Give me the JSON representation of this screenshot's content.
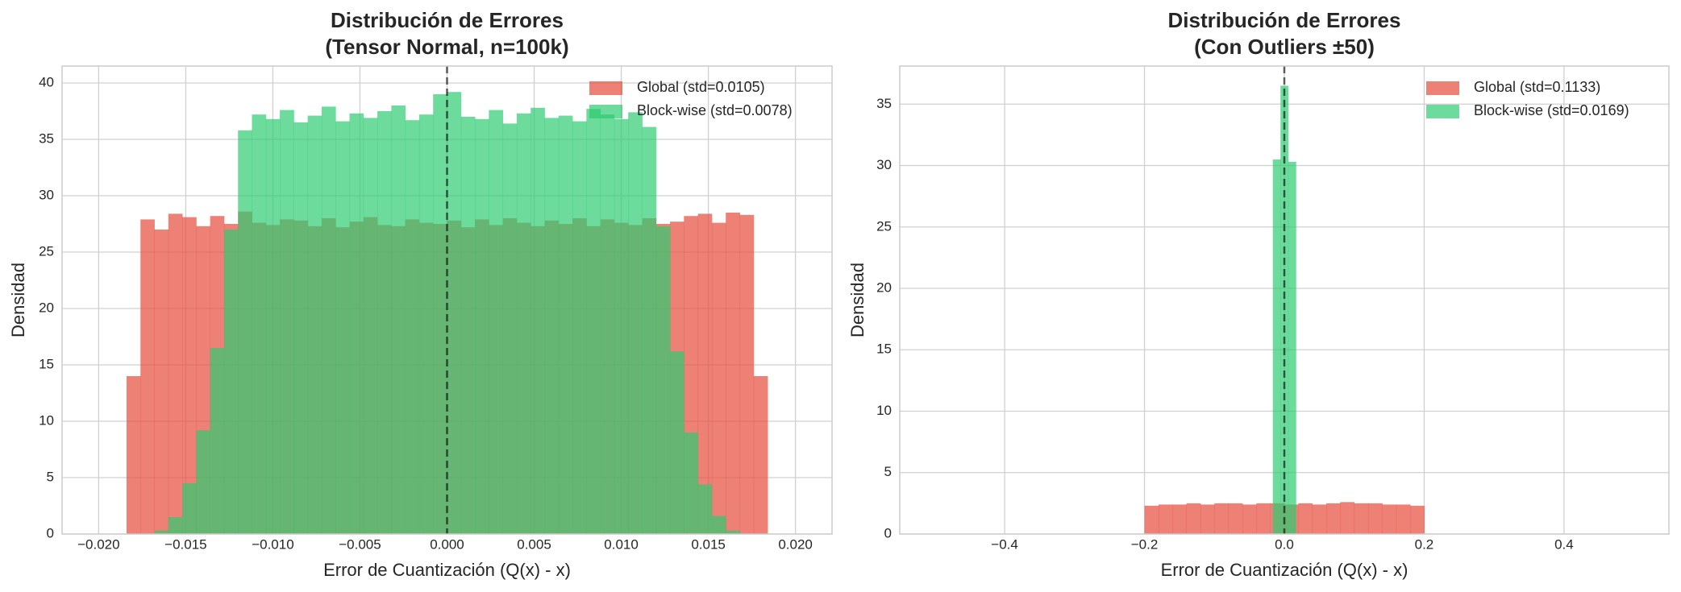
{
  "chart_data": [
    {
      "type": "histogram",
      "title": [
        "Distribución de Errores",
        "(Tensor Normal, n=100k)"
      ],
      "xlabel": "Error de Cuantización (Q(x) - x)",
      "ylabel": "Densidad",
      "xlim": [
        -0.0221,
        0.0221
      ],
      "ylim": [
        0,
        41.5
      ],
      "xticks": [
        {
          "value": -0.02,
          "label": "−0.020"
        },
        {
          "value": -0.015,
          "label": "−0.015"
        },
        {
          "value": -0.01,
          "label": "−0.010"
        },
        {
          "value": -0.005,
          "label": "−0.005"
        },
        {
          "value": 0,
          "label": "0.000"
        },
        0.005,
        {
          "value": 0.01,
          "label": "0.010"
        },
        0.015,
        {
          "value": 0.02,
          "label": "0.020"
        }
      ],
      "yticks": [
        0,
        5,
        10,
        15,
        20,
        25,
        30,
        35,
        40
      ],
      "grid": true,
      "legend": "upper right",
      "vline": 0,
      "alpha": 0.7,
      "series": [
        {
          "name": "Global (std=0.0105)",
          "color": "#e74c3c",
          "bins": [
            -0.0184,
            -0.0176,
            -0.0168,
            -0.016,
            -0.0152,
            -0.0144,
            -0.0136,
            -0.0128,
            -0.012,
            -0.0112,
            -0.0104,
            -0.0096,
            -0.0088,
            -0.008,
            -0.0072,
            -0.0064,
            -0.0056,
            -0.0048,
            -0.004,
            -0.0032,
            -0.0024,
            -0.0016,
            -0.0008,
            0,
            0.0008,
            0.0016,
            0.0024,
            0.0032,
            0.004,
            0.0048,
            0.0056,
            0.0064,
            0.0072,
            0.008,
            0.0088,
            0.0096,
            0.0104,
            0.0112,
            0.012,
            0.0128,
            0.0136,
            0.0144,
            0.0152,
            0.016,
            0.0168,
            0.0176,
            0.0184
          ],
          "values": [
            14.0,
            27.9,
            27.0,
            28.4,
            28.1,
            27.3,
            28.2,
            27.5,
            28.6,
            27.6,
            27.4,
            27.9,
            27.8,
            27.3,
            28.0,
            27.2,
            27.7,
            28.1,
            27.4,
            27.3,
            27.9,
            27.6,
            27.5,
            27.8,
            27.2,
            27.9,
            27.4,
            28.0,
            27.6,
            27.3,
            27.8,
            27.5,
            28.0,
            27.3,
            27.9,
            27.6,
            27.4,
            28.0,
            27.5,
            27.7,
            28.2,
            28.4,
            27.6,
            28.5,
            28.3,
            14.0
          ]
        },
        {
          "name": "Block-wise (std=0.0078)",
          "color": "#2ecc71",
          "bins": [
            -0.0168,
            -0.016,
            -0.0152,
            -0.0144,
            -0.0136,
            -0.0128,
            -0.012,
            -0.0112,
            -0.0104,
            -0.0096,
            -0.0088,
            -0.008,
            -0.0072,
            -0.0064,
            -0.0056,
            -0.0048,
            -0.004,
            -0.0032,
            -0.0024,
            -0.0016,
            -0.0008,
            0,
            0.0008,
            0.0016,
            0.0024,
            0.0032,
            0.004,
            0.0048,
            0.0056,
            0.0064,
            0.0072,
            0.008,
            0.0088,
            0.0096,
            0.0104,
            0.0112,
            0.012,
            0.0128,
            0.0136,
            0.0144,
            0.0152,
            0.016,
            0.0168
          ],
          "values": [
            0.3,
            1.5,
            4.5,
            9.2,
            16.5,
            27.0,
            35.8,
            37.2,
            36.8,
            37.6,
            36.5,
            37.1,
            37.9,
            36.6,
            37.3,
            36.9,
            37.5,
            38.0,
            36.7,
            37.2,
            39.0,
            39.2,
            37.0,
            36.8,
            37.6,
            36.4,
            37.3,
            37.8,
            36.9,
            37.1,
            36.6,
            37.7,
            37.2,
            36.8,
            37.4,
            36.1,
            27.3,
            16.2,
            9.0,
            4.4,
            1.6,
            0.3
          ]
        }
      ]
    },
    {
      "type": "histogram",
      "title": [
        "Distribución de Errores",
        "(Con Outliers ±50)"
      ],
      "xlabel": "Error de Cuantización (Q(x) - x)",
      "ylabel": "Densidad",
      "xlim": [
        -0.55,
        0.55
      ],
      "ylim": [
        0,
        38.1
      ],
      "xticks": [
        {
          "value": -0.4,
          "label": "−0.4"
        },
        {
          "value": -0.2,
          "label": "−0.2"
        },
        {
          "value": 0,
          "label": "0.0"
        },
        0.2,
        0.4
      ],
      "yticks": [
        0,
        5,
        10,
        15,
        20,
        25,
        30,
        35
      ],
      "grid": true,
      "legend": "upper right",
      "vline": 0,
      "alpha": 0.7,
      "series": [
        {
          "name": "Global (std=0.1133)",
          "color": "#e74c3c",
          "bins": [
            -0.2,
            -0.18,
            -0.16,
            -0.14,
            -0.12,
            -0.1,
            -0.08,
            -0.06,
            -0.04,
            -0.02,
            0,
            0.02,
            0.04,
            0.06,
            0.08,
            0.1,
            0.12,
            0.14,
            0.16,
            0.18,
            0.2
          ],
          "values": [
            2.3,
            2.4,
            2.4,
            2.5,
            2.4,
            2.5,
            2.5,
            2.4,
            2.5,
            2.5,
            2.4,
            2.5,
            2.4,
            2.5,
            2.6,
            2.5,
            2.5,
            2.4,
            2.4,
            2.3
          ]
        },
        {
          "name": "Block-wise (std=0.0169)",
          "color": "#2ecc71",
          "bins": [
            -0.0165,
            -0.0055,
            0.0055,
            0.0165
          ],
          "values": [
            30.5,
            36.5,
            30.3
          ]
        }
      ]
    }
  ]
}
